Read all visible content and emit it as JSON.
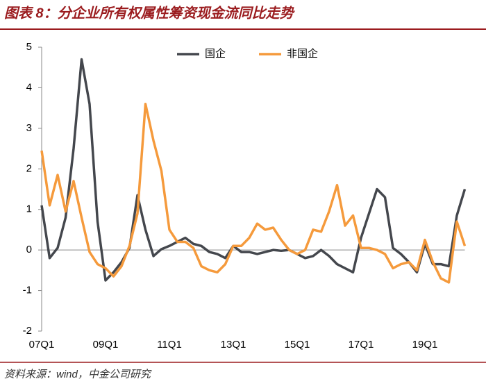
{
  "chart_data": {
    "type": "line",
    "title": "图表 8：分企业所有权属性筹资现金流同比走势",
    "source": "资料来源：wind，中金公司研究",
    "categories": [
      "07Q1",
      null,
      null,
      null,
      null,
      null,
      null,
      null,
      "09Q1",
      null,
      null,
      null,
      null,
      null,
      null,
      null,
      "11Q1",
      null,
      null,
      null,
      null,
      null,
      null,
      null,
      "13Q1",
      null,
      null,
      null,
      null,
      null,
      null,
      null,
      "15Q1",
      null,
      null,
      null,
      null,
      null,
      null,
      null,
      "17Q1",
      null,
      null,
      null,
      null,
      null,
      null,
      null,
      "19Q1",
      null,
      null,
      null,
      null,
      null
    ],
    "series": [
      {
        "name": "国企",
        "color": "#44474d",
        "values": [
          1.1,
          -0.2,
          0.05,
          0.8,
          2.5,
          4.7,
          3.6,
          0.7,
          -0.75,
          -0.55,
          -0.3,
          0.05,
          1.35,
          0.5,
          -0.15,
          0.02,
          0.1,
          0.2,
          0.3,
          0.15,
          0.1,
          -0.05,
          -0.1,
          -0.2,
          0.1,
          -0.05,
          -0.05,
          -0.1,
          -0.05,
          0.0,
          -0.02,
          0.0,
          -0.1,
          -0.2,
          -0.15,
          0.0,
          -0.15,
          -0.35,
          -0.45,
          -0.55,
          0.3,
          0.9,
          1.5,
          1.3,
          0.05,
          -0.1,
          -0.3,
          -0.55,
          0.15,
          -0.35,
          -0.35,
          -0.4,
          0.85,
          1.5
        ]
      },
      {
        "name": "非国企",
        "color": "#f59a3c",
        "values": [
          2.45,
          1.1,
          1.85,
          0.95,
          1.7,
          0.8,
          -0.05,
          -0.35,
          -0.45,
          -0.65,
          -0.4,
          0.1,
          0.9,
          3.6,
          2.7,
          1.95,
          0.5,
          0.2,
          0.2,
          0.05,
          -0.4,
          -0.5,
          -0.55,
          -0.35,
          0.1,
          0.1,
          0.3,
          0.65,
          0.5,
          0.55,
          0.25,
          0.0,
          -0.1,
          0.0,
          0.5,
          0.45,
          0.95,
          1.6,
          0.6,
          0.85,
          0.05,
          0.05,
          0.0,
          -0.1,
          -0.45,
          -0.35,
          -0.3,
          -0.5,
          0.25,
          -0.3,
          -0.7,
          -0.8,
          0.7,
          0.1
        ]
      }
    ],
    "ylim": [
      -2,
      5
    ],
    "yticks": [
      5,
      4,
      3,
      2,
      1,
      0,
      -1,
      -2
    ],
    "legend": "top"
  }
}
